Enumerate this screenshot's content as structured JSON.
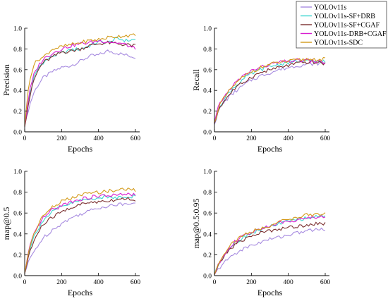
{
  "legend": {
    "entries": [
      {
        "name": "YOLOv11s",
        "color": "#a78be0"
      },
      {
        "name": "YOLOv11s-SF+DRB",
        "color": "#3fd6d0"
      },
      {
        "name": "YOLOv11s-SF+CGAF",
        "color": "#7b2f2f"
      },
      {
        "name": "YOLOv11s-DRB+CGAF",
        "color": "#d81fd0"
      },
      {
        "name": "YOLOv11s-SDC",
        "color": "#d39a1a"
      }
    ]
  },
  "chart_data": [
    {
      "type": "line",
      "xlabel": "Epochs",
      "ylabel": "Precision",
      "xlim": [
        0,
        600
      ],
      "ylim": [
        0,
        1.0
      ],
      "xticks": [
        "0",
        "200",
        "400",
        "600"
      ],
      "yticks": [
        "0.0",
        "0.2",
        "0.4",
        "0.6",
        "0.8",
        "1.0"
      ],
      "x": [
        0,
        25,
        50,
        75,
        100,
        150,
        200,
        250,
        300,
        350,
        400,
        450,
        500,
        550,
        600
      ],
      "series": [
        {
          "name": "YOLOv11s",
          "values": [
            0.05,
            0.25,
            0.38,
            0.46,
            0.52,
            0.58,
            0.62,
            0.64,
            0.68,
            0.73,
            0.74,
            0.78,
            0.76,
            0.74,
            0.72
          ]
        },
        {
          "name": "YOLOv11s-SF+DRB",
          "values": [
            0.05,
            0.35,
            0.52,
            0.62,
            0.67,
            0.73,
            0.76,
            0.79,
            0.8,
            0.83,
            0.87,
            0.86,
            0.9,
            0.88,
            0.89
          ]
        },
        {
          "name": "YOLOv11s-SF+CGAF",
          "values": [
            0.05,
            0.32,
            0.5,
            0.6,
            0.67,
            0.72,
            0.77,
            0.78,
            0.8,
            0.83,
            0.85,
            0.86,
            0.85,
            0.84,
            0.83
          ]
        },
        {
          "name": "YOLOv11s-DRB+CGAF",
          "values": [
            0.05,
            0.38,
            0.55,
            0.64,
            0.7,
            0.76,
            0.8,
            0.83,
            0.85,
            0.86,
            0.88,
            0.87,
            0.86,
            0.84,
            0.8
          ]
        },
        {
          "name": "YOLOv11s-SDC",
          "values": [
            0.05,
            0.5,
            0.65,
            0.7,
            0.72,
            0.8,
            0.82,
            0.84,
            0.86,
            0.88,
            0.89,
            0.91,
            0.92,
            0.93,
            0.93
          ]
        }
      ]
    },
    {
      "type": "line",
      "xlabel": "Epochs",
      "ylabel": "Recall",
      "xlim": [
        0,
        600
      ],
      "ylim": [
        0,
        1.0
      ],
      "xticks": [
        "0",
        "200",
        "400",
        "600"
      ],
      "yticks": [
        "0.0",
        "0.2",
        "0.4",
        "0.6",
        "0.8",
        "1.0"
      ],
      "x": [
        0,
        25,
        50,
        75,
        100,
        150,
        200,
        250,
        300,
        350,
        400,
        450,
        500,
        550,
        600
      ],
      "series": [
        {
          "name": "YOLOv11s",
          "values": [
            0.07,
            0.22,
            0.28,
            0.33,
            0.37,
            0.44,
            0.5,
            0.54,
            0.57,
            0.6,
            0.62,
            0.64,
            0.65,
            0.66,
            0.66
          ]
        },
        {
          "name": "YOLOv11s-SF+DRB",
          "values": [
            0.08,
            0.24,
            0.31,
            0.37,
            0.42,
            0.5,
            0.56,
            0.6,
            0.63,
            0.65,
            0.67,
            0.68,
            0.68,
            0.68,
            0.68
          ]
        },
        {
          "name": "YOLOv11s-SF+CGAF",
          "values": [
            0.08,
            0.23,
            0.29,
            0.35,
            0.4,
            0.47,
            0.53,
            0.57,
            0.6,
            0.62,
            0.64,
            0.66,
            0.67,
            0.67,
            0.66
          ]
        },
        {
          "name": "YOLOv11s-DRB+CGAF",
          "values": [
            0.09,
            0.26,
            0.33,
            0.39,
            0.45,
            0.53,
            0.59,
            0.62,
            0.65,
            0.67,
            0.68,
            0.69,
            0.69,
            0.68,
            0.67
          ]
        },
        {
          "name": "YOLOv11s-SDC",
          "values": [
            0.09,
            0.25,
            0.32,
            0.38,
            0.44,
            0.52,
            0.58,
            0.62,
            0.65,
            0.67,
            0.68,
            0.69,
            0.7,
            0.7,
            0.7
          ]
        }
      ]
    },
    {
      "type": "line",
      "xlabel": "Epochs",
      "ylabel": "map@0.5",
      "xlim": [
        0,
        600
      ],
      "ylim": [
        0,
        1.0
      ],
      "xticks": [
        "0",
        "200",
        "400",
        "600"
      ],
      "yticks": [
        "0.0",
        "0.2",
        "0.4",
        "0.6",
        "0.8",
        "1.0"
      ],
      "x": [
        0,
        25,
        50,
        75,
        100,
        150,
        200,
        250,
        300,
        350,
        400,
        450,
        500,
        550,
        600
      ],
      "series": [
        {
          "name": "YOLOv11s",
          "values": [
            0.02,
            0.15,
            0.23,
            0.3,
            0.36,
            0.44,
            0.5,
            0.55,
            0.59,
            0.62,
            0.65,
            0.67,
            0.68,
            0.69,
            0.71
          ]
        },
        {
          "name": "YOLOv11s-SF+DRB",
          "values": [
            0.02,
            0.25,
            0.37,
            0.46,
            0.53,
            0.61,
            0.66,
            0.69,
            0.72,
            0.73,
            0.75,
            0.75,
            0.75,
            0.76,
            0.76
          ]
        },
        {
          "name": "YOLOv11s-SF+CGAF",
          "values": [
            0.02,
            0.22,
            0.33,
            0.42,
            0.49,
            0.56,
            0.61,
            0.65,
            0.68,
            0.7,
            0.71,
            0.72,
            0.73,
            0.74,
            0.73
          ]
        },
        {
          "name": "YOLOv11s-DRB+CGAF",
          "values": [
            0.02,
            0.26,
            0.39,
            0.48,
            0.55,
            0.63,
            0.67,
            0.71,
            0.73,
            0.75,
            0.76,
            0.77,
            0.77,
            0.78,
            0.77
          ]
        },
        {
          "name": "YOLOv11s-SDC",
          "values": [
            0.02,
            0.27,
            0.4,
            0.5,
            0.57,
            0.66,
            0.71,
            0.74,
            0.77,
            0.79,
            0.8,
            0.81,
            0.82,
            0.83,
            0.82
          ]
        }
      ]
    },
    {
      "type": "line",
      "xlabel": "Epochs",
      "ylabel": "map@0.5:0.95",
      "xlim": [
        0,
        600
      ],
      "ylim": [
        0,
        1.0
      ],
      "xticks": [
        "0",
        "200",
        "400",
        "600"
      ],
      "yticks": [
        "0.0",
        "0.2",
        "0.4",
        "0.6",
        "0.8",
        "1.0"
      ],
      "x": [
        0,
        25,
        50,
        75,
        100,
        150,
        200,
        250,
        300,
        350,
        400,
        450,
        500,
        550,
        600
      ],
      "series": [
        {
          "name": "YOLOv11s",
          "values": [
            0.01,
            0.07,
            0.12,
            0.16,
            0.2,
            0.25,
            0.29,
            0.32,
            0.35,
            0.37,
            0.39,
            0.41,
            0.43,
            0.44,
            0.45
          ]
        },
        {
          "name": "YOLOv11s-SF+DRB",
          "values": [
            0.01,
            0.12,
            0.19,
            0.25,
            0.3,
            0.36,
            0.41,
            0.44,
            0.47,
            0.5,
            0.52,
            0.54,
            0.55,
            0.57,
            0.57
          ]
        },
        {
          "name": "YOLOv11s-SF+CGAF",
          "values": [
            0.01,
            0.11,
            0.18,
            0.24,
            0.28,
            0.34,
            0.38,
            0.41,
            0.43,
            0.45,
            0.46,
            0.47,
            0.49,
            0.5,
            0.5
          ]
        },
        {
          "name": "YOLOv11s-DRB+CGAF",
          "values": [
            0.01,
            0.12,
            0.2,
            0.26,
            0.31,
            0.37,
            0.41,
            0.45,
            0.48,
            0.5,
            0.52,
            0.54,
            0.55,
            0.56,
            0.57
          ]
        },
        {
          "name": "YOLOv11s-SDC",
          "values": [
            0.01,
            0.13,
            0.21,
            0.27,
            0.32,
            0.38,
            0.42,
            0.45,
            0.48,
            0.51,
            0.54,
            0.56,
            0.58,
            0.59,
            0.59
          ]
        }
      ]
    }
  ]
}
